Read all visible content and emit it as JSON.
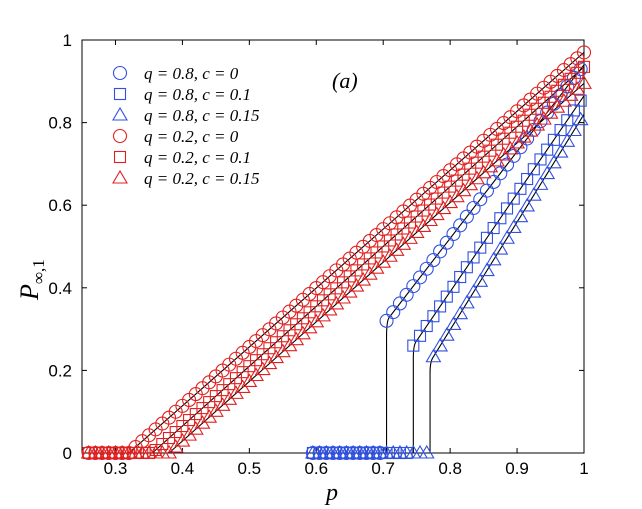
{
  "chart_data": {
    "type": "line",
    "panel_label": "(a)",
    "xlabel": "p",
    "ylabel_main": "P",
    "ylabel_sub": "∞,1",
    "xlim": [
      0.25,
      1.0
    ],
    "ylim": [
      0,
      1
    ],
    "xticks": [
      {
        "value": 0.3,
        "label": "0.3"
      },
      {
        "value": 0.4,
        "label": "0.4"
      },
      {
        "value": 0.5,
        "label": "0.5"
      },
      {
        "value": 0.6,
        "label": "0.6"
      },
      {
        "value": 0.7,
        "label": "0.7"
      },
      {
        "value": 0.8,
        "label": "0.8"
      },
      {
        "value": 0.9,
        "label": "0.9"
      },
      {
        "value": 1.0,
        "label": "1"
      }
    ],
    "yticks": [
      {
        "value": 0,
        "label": "0"
      },
      {
        "value": 0.2,
        "label": "0.2"
      },
      {
        "value": 0.4,
        "label": "0.4"
      },
      {
        "value": 0.6,
        "label": "0.6"
      },
      {
        "value": 0.8,
        "label": "0.8"
      },
      {
        "value": 1.0,
        "label": "1"
      }
    ],
    "colors": {
      "blue": "#3050e0",
      "red": "#e02020",
      "line": "#000000"
    },
    "series": [
      {
        "name": "q = 0.8, c = 0",
        "marker": "circle",
        "color": "blue",
        "pc": 0.705,
        "jump": 0.32,
        "end": 0.94,
        "xmin": 0.595,
        "step": 0.01
      },
      {
        "name": "q = 0.8, c = 0.1",
        "marker": "square",
        "color": "blue",
        "pc": 0.745,
        "jump": 0.26,
        "end": 0.865,
        "xmin": 0.595,
        "step": 0.01
      },
      {
        "name": "q = 0.8, c = 0.15",
        "marker": "triangle",
        "color": "blue",
        "pc": 0.77,
        "jump": 0.22,
        "end": 0.82,
        "xmin": 0.595,
        "step": 0.01
      },
      {
        "name": "q = 0.2, c = 0",
        "marker": "circle",
        "color": "red",
        "pc": 0.32,
        "jump": 0.0,
        "end": 0.97,
        "xmin": 0.26,
        "step": 0.01
      },
      {
        "name": "q = 0.2, c = 0.1",
        "marker": "square",
        "color": "red",
        "pc": 0.355,
        "jump": 0.0,
        "end": 0.935,
        "xmin": 0.26,
        "step": 0.01
      },
      {
        "name": "q = 0.2, c = 0.15",
        "marker": "triangle",
        "color": "red",
        "pc": 0.38,
        "jump": 0.0,
        "end": 0.895,
        "xmin": 0.26,
        "step": 0.01
      }
    ]
  }
}
